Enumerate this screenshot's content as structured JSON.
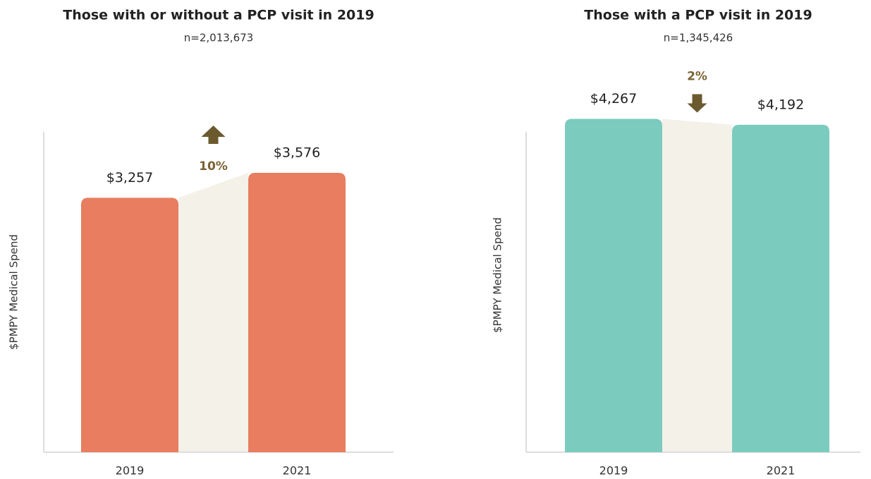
{
  "chart_data": [
    {
      "type": "bar",
      "title": "Those with or without a PCP visit in 2019",
      "subtitle": "n=2,013,673",
      "y_label": "$PMPY Medical Spend",
      "categories": [
        "2019",
        "2021"
      ],
      "values": [
        3257,
        3576
      ],
      "value_labels": [
        "$3,257",
        "$3,576"
      ],
      "color": "#e87d5f",
      "annotation": "10%",
      "ylim": [
        0,
        4100
      ]
    },
    {
      "type": "bar",
      "title": "Those with a PCP visit in 2019",
      "subtitle": "n=1,345,426",
      "y_label": "$PMPY Medical Spend",
      "categories": [
        "2019",
        "2021"
      ],
      "values": [
        4267,
        4192
      ],
      "value_labels": [
        "$4,267",
        "$4,192"
      ],
      "color": "#7bcbbf",
      "annotation": "2%",
      "ylim": [
        0,
        4100
      ]
    }
  ]
}
